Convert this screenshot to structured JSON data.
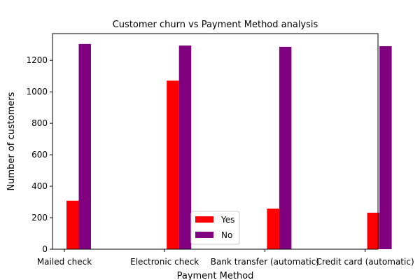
{
  "chart_data": {
    "type": "bar",
    "title": "Customer churn vs Payment Method analysis",
    "xlabel": "Payment Method",
    "ylabel": "Number of customers",
    "categories": [
      "Mailed check",
      "Electronic check",
      "Bank transfer (automatic)",
      "Credit card (automatic)"
    ],
    "series": [
      {
        "name": "Yes",
        "color": "#ff0000",
        "values": [
          308,
          1071,
          258,
          232
        ]
      },
      {
        "name": "No",
        "color": "#800080",
        "values": [
          1304,
          1294,
          1286,
          1290
        ]
      }
    ],
    "ylim": [
      0,
      1370
    ],
    "yticks": [
      0,
      200,
      400,
      600,
      800,
      1000,
      1200
    ],
    "grid": false,
    "legend_position": "bottom-center"
  }
}
